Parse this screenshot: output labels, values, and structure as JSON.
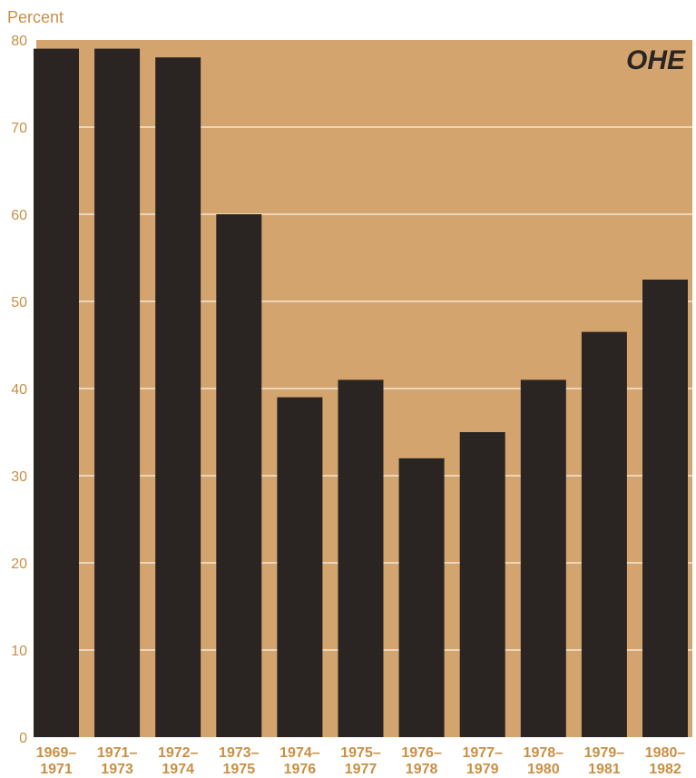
{
  "chart_data": {
    "type": "bar",
    "ylabel": "Percent",
    "ylim": [
      0,
      80
    ],
    "yticks": [
      0,
      10,
      20,
      30,
      40,
      50,
      60,
      70,
      80
    ],
    "categories": [
      [
        "1969–",
        "1971"
      ],
      [
        "1971–",
        "1973"
      ],
      [
        "1972–",
        "1974"
      ],
      [
        "1973–",
        "1975"
      ],
      [
        "1974–",
        "1976"
      ],
      [
        "1975–",
        "1977"
      ],
      [
        "1976–",
        "1978"
      ],
      [
        "1977–",
        "1979"
      ],
      [
        "1978–",
        "1980"
      ],
      [
        "1979–",
        "1981"
      ],
      [
        "1980–",
        "1982"
      ]
    ],
    "values": [
      79,
      79,
      78,
      60,
      39,
      41,
      32,
      35,
      41,
      46.5,
      52.5
    ],
    "grid": true,
    "logo_text": "OHE",
    "colors": {
      "background": "#d4a46e",
      "bar": "#2a2523",
      "gridline": "#f4e6d2",
      "text": "#c98f45"
    }
  }
}
